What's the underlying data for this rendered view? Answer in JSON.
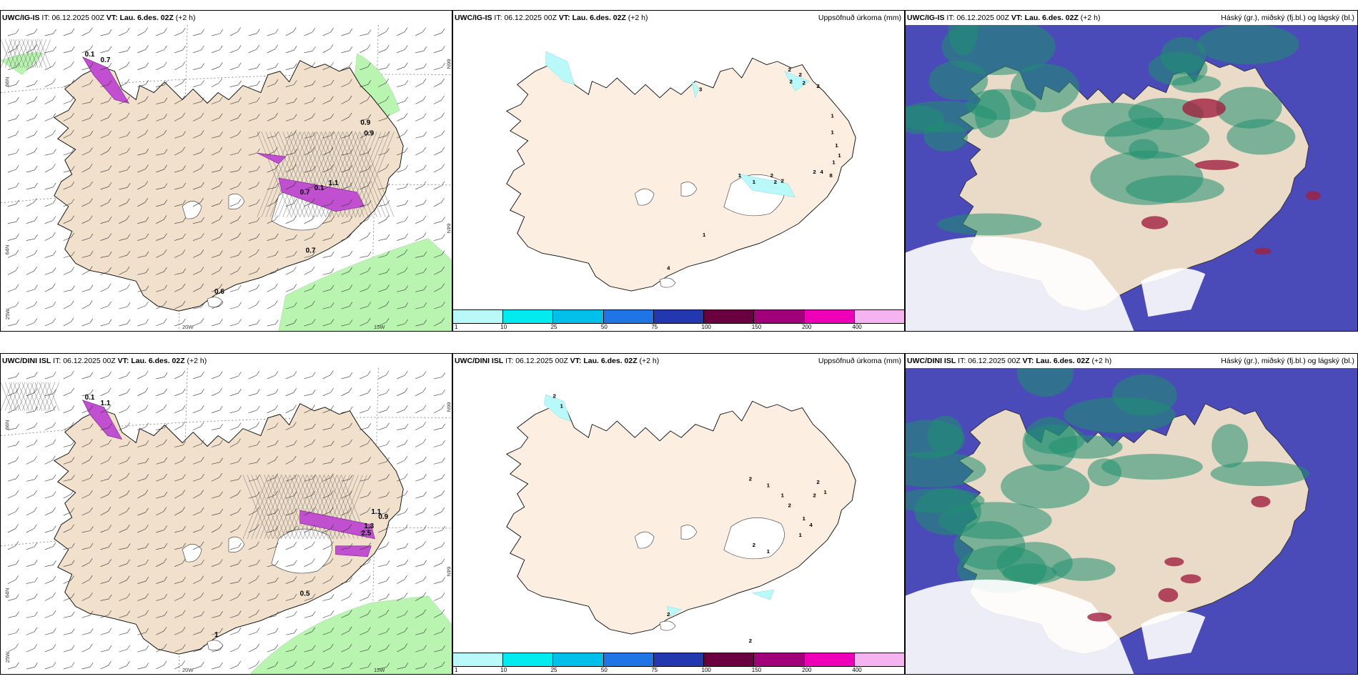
{
  "panels": [
    {
      "model": "UWC/IG-IS",
      "it_label": "IT:",
      "it": "06.12.2025 00Z",
      "vt_label": "VT:",
      "vt": "Lau. 6.des. 02Z",
      "lead": "(+2 h)",
      "right_title": "",
      "lat_labels": [
        "66N",
        "64N",
        "25W"
      ],
      "lon_labels": [
        "20W",
        "15W"
      ],
      "lat_right": [
        "66N",
        "64N"
      ],
      "point_values": [
        "0.1",
        "0.7",
        "0.9",
        "0.9",
        "0.7",
        "0.1",
        "1.1",
        "0.6",
        "0.7"
      ]
    },
    {
      "model": "UWC/IG-IS",
      "it_label": "IT:",
      "it": "06.12.2025 00Z",
      "vt_label": "VT:",
      "vt": "Lau. 6.des. 02Z",
      "lead": "(+2 h)",
      "right_title": "Uppsöfnuð úrkoma (mm)",
      "legend_ticks": [
        "1",
        "10",
        "25",
        "50",
        "75",
        "100",
        "150",
        "200",
        "400"
      ],
      "legend_colors": [
        "#b9f9f9",
        "#00eaf0",
        "#00bfe8",
        "#1f74e6",
        "#2338b0",
        "#6a0040",
        "#a0007a",
        "#ee00b8",
        "#f5b3f0"
      ],
      "point_values": [
        "2",
        "2",
        "2",
        "2",
        "2",
        "3",
        "1",
        "1",
        "1",
        "1",
        "1",
        "2",
        "2",
        "4",
        "1",
        "1",
        "1",
        "2",
        "2",
        "4",
        "8"
      ]
    },
    {
      "model": "UWC/IG-IS",
      "it_label": "IT:",
      "it": "06.12.2025 00Z",
      "vt_label": "VT:",
      "vt": "Lau. 6.des. 02Z",
      "lead": "(+2 h)",
      "right_title": "Háský (gr.), miðský (fj.bl.) og lágský (bl.)"
    },
    {
      "model": "UWC/DINI ISL",
      "it_label": "IT:",
      "it": "06.12.2025 00Z",
      "vt_label": "VT:",
      "vt": "Lau. 6.des. 02Z",
      "lead": "(+2 h)",
      "right_title": "",
      "lat_labels": [
        "66N",
        "64N",
        "25W"
      ],
      "lon_labels": [
        "20W",
        "15W"
      ],
      "lat_right": [
        "66N",
        "64N"
      ],
      "point_values": [
        "0.1",
        "1.1",
        "0.9",
        "1.3",
        "2.5",
        "1.1",
        "0.5",
        "1"
      ]
    },
    {
      "model": "UWC/DINI ISL",
      "it_label": "IT:",
      "it": "06.12.2025 00Z",
      "vt_label": "VT:",
      "vt": "Lau. 6.des. 02Z",
      "lead": "(+2 h)",
      "right_title": "Uppsöfnuð úrkoma (mm)",
      "legend_ticks": [
        "1",
        "10",
        "25",
        "50",
        "75",
        "100",
        "150",
        "200",
        "400"
      ],
      "legend_colors": [
        "#b9f9f9",
        "#00eaf0",
        "#00bfe8",
        "#1f74e6",
        "#2338b0",
        "#6a0040",
        "#a0007a",
        "#ee00b8",
        "#f5b3f0"
      ],
      "point_values": [
        "2",
        "1",
        "2",
        "1",
        "1",
        "2",
        "1",
        "2",
        "2",
        "1",
        "4",
        "1",
        "2",
        "1",
        "2",
        "2"
      ]
    },
    {
      "model": "UWC/DINI ISL",
      "it_label": "IT:",
      "it": "06.12.2025 00Z",
      "vt_label": "VT:",
      "vt": "Lau. 6.des. 02Z",
      "lead": "(+2 h)",
      "right_title": "Háský (gr.), miðský (fj.bl.) og lágský (bl.)"
    }
  ],
  "colors": {
    "land_wind": "#f0e0cc",
    "land_precip": "#fcefe2",
    "land_cloud": "#eadbc8",
    "glacier": "#ffffff",
    "precip_green": "#b9f5b0",
    "precip_purple": "#c050d0",
    "cloud_high": "#1f8f70",
    "cloud_mid": "#4a4ab8",
    "cloud_low": "#ffffff",
    "cloud_red": "#a02040"
  }
}
